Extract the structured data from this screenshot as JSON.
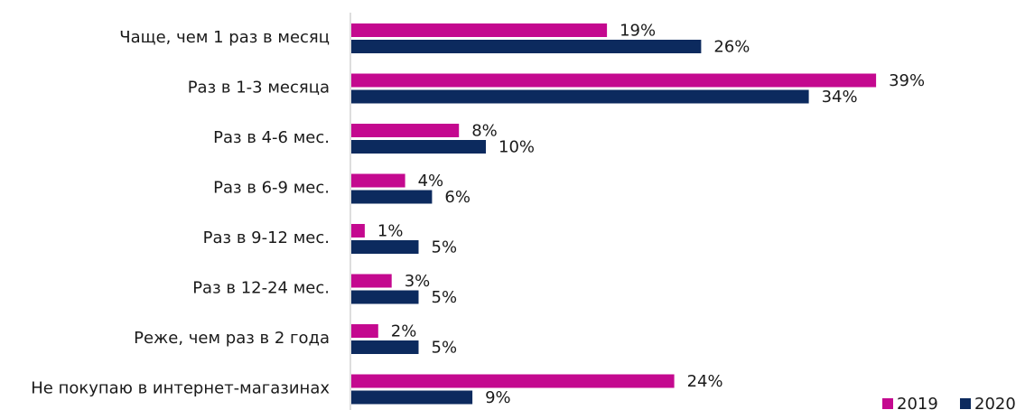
{
  "chart_data": {
    "type": "bar",
    "orientation": "horizontal",
    "legend": "bottom-right",
    "categories": [
      "Чаще, чем 1 раз в месяц",
      "Раз в 1-3 месяца",
      "Раз в 4-6 мес.",
      "Раз в 6-9 мес.",
      "Раз в 9-12 мес.",
      "Раз в 12-24 мес.",
      "Реже, чем раз в 2 года",
      "Не покупаю в интернет-магазинах"
    ],
    "series": [
      {
        "name": "2019",
        "color": "#c4098f",
        "values": [
          19,
          39,
          8,
          4,
          1,
          3,
          2,
          24
        ],
        "value_labels": [
          "19%",
          "39%",
          "8%",
          "4%",
          "1%",
          "3%",
          "2%",
          "24%"
        ]
      },
      {
        "name": "2020",
        "color": "#0c2a5e",
        "values": [
          26,
          34,
          10,
          6,
          5,
          5,
          5,
          9
        ],
        "value_labels": [
          "26%",
          "34%",
          "10%",
          "6%",
          "5%",
          "5%",
          "5%",
          "9%"
        ]
      }
    ]
  }
}
